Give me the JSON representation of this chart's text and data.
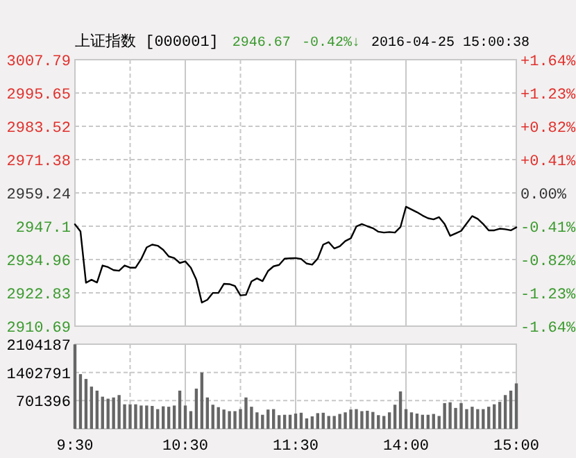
{
  "chart_data": [
    {
      "type": "line",
      "title": "上证指数 [000001]",
      "annotations": [
        "2946.67",
        "-0.42%↓",
        "2016-04-25 15:00:38"
      ],
      "categories": [
        null,
        null,
        null,
        null,
        null,
        null,
        null,
        null,
        null,
        null,
        null,
        null,
        null,
        null,
        null,
        null,
        null,
        null,
        null,
        null,
        null,
        null,
        null,
        null,
        null,
        null,
        null,
        null,
        null,
        null,
        null,
        null,
        null,
        null,
        null,
        null,
        null,
        null,
        null,
        null,
        null,
        null,
        null,
        null,
        null,
        null,
        null,
        null,
        null,
        null,
        null,
        null,
        null,
        null,
        null,
        null,
        null,
        null,
        null,
        null,
        null,
        null,
        null,
        null,
        null,
        null,
        null,
        null,
        null,
        null,
        null,
        null,
        null,
        null,
        null,
        null,
        null,
        null,
        null,
        null,
        null
      ],
      "series": [
        {
          "color": "#000000",
          "values": [
            2947.8,
            2945.2,
            2926.5,
            2927.6,
            2926.6,
            2932.8,
            2932.2,
            2931.1,
            2930.9,
            2932.8,
            2932.0,
            2932.0,
            2935.1,
            2939.4,
            2940.4,
            2940.0,
            2938.5,
            2936.1,
            2935.5,
            2933.7,
            2934.3,
            2932.0,
            2927.6,
            2919.3,
            2920.3,
            2922.8,
            2922.8,
            2926.1,
            2926.0,
            2925.3,
            2921.9,
            2922.1,
            2927.0,
            2928.1,
            2927.1,
            2930.8,
            2932.5,
            2933.0,
            2935.3,
            2935.4,
            2935.5,
            2935.2,
            2933.5,
            2933.1,
            2935.3,
            2940.4,
            2941.3,
            2939.0,
            2939.8,
            2941.7,
            2942.7,
            2947.0,
            2947.9,
            2947.1,
            2946.4,
            2945.1,
            2944.8,
            2945.0,
            2944.8,
            2946.8,
            2954.2,
            2953.2,
            2952.2,
            2951.0,
            2950.0,
            2949.6,
            2950.4,
            2947.9,
            2943.6,
            2944.5,
            2945.4,
            2948.1,
            2950.8,
            2949.8,
            2947.9,
            2945.6,
            2945.6,
            2946.2,
            2946.0,
            2945.6,
            2946.7
          ]
        }
      ],
      "ylim": [
        2910.69,
        3007.79
      ],
      "yticks": [
        3007.79,
        2995.65,
        2983.52,
        2971.38,
        2959.24,
        2947.1,
        2934.96,
        2922.83,
        2910.69
      ],
      "y2lim": [
        -1.64,
        1.64
      ],
      "y2ticks": [
        {
          "value": 1.64,
          "label": "+1.64%"
        },
        {
          "value": 1.23,
          "label": "+1.23%"
        },
        {
          "value": 0.82,
          "label": "+0.82%"
        },
        {
          "value": 0.41,
          "label": "+0.41%"
        },
        {
          "value": 0,
          "label": "0.00%"
        },
        {
          "value": -0.41,
          "label": "-0.41%"
        },
        {
          "value": -0.82,
          "label": "-0.82%"
        },
        {
          "value": -1.23,
          "label": "-1.23%"
        },
        {
          "value": -1.64,
          "label": "-1.64%"
        }
      ],
      "grid": true,
      "tick_labels": "y"
    },
    {
      "type": "bar",
      "categories": [
        "9:30",
        null,
        null,
        null,
        null,
        null,
        null,
        null,
        null,
        null,
        null,
        null,
        null,
        null,
        null,
        null,
        null,
        null,
        null,
        null,
        "10:30",
        null,
        null,
        null,
        null,
        null,
        null,
        null,
        null,
        null,
        null,
        null,
        null,
        null,
        null,
        null,
        null,
        null,
        null,
        null,
        "11:30",
        null,
        null,
        null,
        null,
        null,
        null,
        null,
        null,
        null,
        null,
        null,
        null,
        null,
        null,
        null,
        null,
        null,
        null,
        null,
        "14:00",
        null,
        null,
        null,
        null,
        null,
        null,
        null,
        null,
        null,
        null,
        null,
        null,
        null,
        null,
        null,
        null,
        null,
        null,
        null,
        "15:00"
      ],
      "series": [
        {
          "color": "#666666",
          "values": [
            2100000,
            1360000,
            1240000,
            1050000,
            950000,
            800000,
            750000,
            780000,
            840000,
            610000,
            610000,
            610000,
            580000,
            580000,
            570000,
            490000,
            560000,
            550000,
            580000,
            950000,
            580000,
            440000,
            1000000,
            1400000,
            780000,
            600000,
            540000,
            480000,
            440000,
            440000,
            490000,
            780000,
            550000,
            410000,
            350000,
            480000,
            490000,
            340000,
            350000,
            350000,
            380000,
            400000,
            260000,
            310000,
            390000,
            400000,
            320000,
            320000,
            370000,
            410000,
            480000,
            490000,
            440000,
            450000,
            420000,
            340000,
            320000,
            410000,
            600000,
            930000,
            490000,
            410000,
            380000,
            350000,
            350000,
            370000,
            320000,
            640000,
            660000,
            520000,
            640000,
            490000,
            550000,
            490000,
            490000,
            550000,
            610000,
            670000,
            840000,
            950000,
            1130000
          ]
        }
      ],
      "ylim": [
        0,
        2104187
      ],
      "yticks": [
        701396,
        1402791,
        2104187
      ],
      "grid": true
    }
  ]
}
